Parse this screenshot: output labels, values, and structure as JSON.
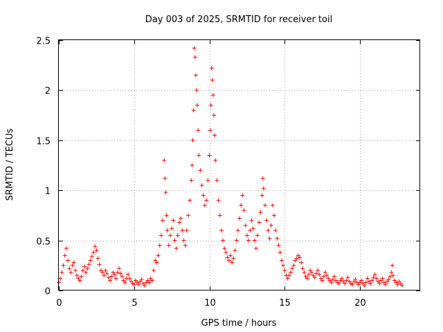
{
  "chart_data": {
    "type": "scatter",
    "title": "Day 003 of 2025, SRMTID for receiver toil",
    "xlabel": "GPS time / hours",
    "ylabel": "SRMTID / TECUs",
    "xlim": [
      0,
      24
    ],
    "ylim": [
      0,
      2.5
    ],
    "grid": true,
    "marker": "+",
    "color": "#ff0000",
    "x_ticks": [
      0,
      5,
      10,
      15,
      20
    ],
    "x_tick_labels": [
      "0",
      "5",
      "10",
      "15",
      "20"
    ],
    "y_ticks": [
      0,
      0.5,
      1,
      1.5,
      2,
      2.5
    ],
    "y_tick_labels": [
      "0",
      "0.5",
      "1",
      "1.5",
      "2",
      "2.5"
    ],
    "series": [
      {
        "name": "SRMTID",
        "points": [
          [
            0.0,
            0.08
          ],
          [
            0.1,
            0.12
          ],
          [
            0.2,
            0.18
          ],
          [
            0.3,
            0.25
          ],
          [
            0.4,
            0.35
          ],
          [
            0.5,
            0.42
          ],
          [
            0.6,
            0.3
          ],
          [
            0.7,
            0.22
          ],
          [
            0.8,
            0.18
          ],
          [
            0.9,
            0.25
          ],
          [
            1.0,
            0.28
          ],
          [
            1.1,
            0.2
          ],
          [
            1.2,
            0.15
          ],
          [
            1.3,
            0.12
          ],
          [
            1.4,
            0.1
          ],
          [
            1.5,
            0.14
          ],
          [
            1.6,
            0.2
          ],
          [
            1.7,
            0.24
          ],
          [
            1.8,
            0.18
          ],
          [
            1.9,
            0.22
          ],
          [
            2.0,
            0.26
          ],
          [
            2.1,
            0.3
          ],
          [
            2.2,
            0.34
          ],
          [
            2.3,
            0.38
          ],
          [
            2.4,
            0.44
          ],
          [
            2.5,
            0.4
          ],
          [
            2.6,
            0.32
          ],
          [
            2.7,
            0.26
          ],
          [
            2.8,
            0.2
          ],
          [
            2.9,
            0.18
          ],
          [
            3.0,
            0.15
          ],
          [
            3.1,
            0.2
          ],
          [
            3.2,
            0.17
          ],
          [
            3.3,
            0.13
          ],
          [
            3.4,
            0.1
          ],
          [
            3.5,
            0.14
          ],
          [
            3.6,
            0.18
          ],
          [
            3.7,
            0.16
          ],
          [
            3.8,
            0.12
          ],
          [
            3.9,
            0.18
          ],
          [
            4.0,
            0.22
          ],
          [
            4.1,
            0.17
          ],
          [
            4.2,
            0.14
          ],
          [
            4.3,
            0.1
          ],
          [
            4.4,
            0.08
          ],
          [
            4.5,
            0.12
          ],
          [
            4.6,
            0.16
          ],
          [
            4.7,
            0.12
          ],
          [
            4.8,
            0.09
          ],
          [
            4.9,
            0.07
          ],
          [
            5.0,
            0.06
          ],
          [
            5.1,
            0.1
          ],
          [
            5.2,
            0.08
          ],
          [
            5.3,
            0.06
          ],
          [
            5.4,
            0.09
          ],
          [
            5.5,
            0.11
          ],
          [
            5.6,
            0.07
          ],
          [
            5.7,
            0.05
          ],
          [
            5.8,
            0.08
          ],
          [
            5.9,
            0.1
          ],
          [
            6.0,
            0.08
          ],
          [
            6.1,
            0.12
          ],
          [
            6.2,
            0.1
          ],
          [
            6.3,
            0.2
          ],
          [
            6.4,
            0.3
          ],
          [
            6.5,
            0.28
          ],
          [
            6.6,
            0.35
          ],
          [
            6.7,
            0.45
          ],
          [
            6.8,
            0.55
          ],
          [
            6.9,
            0.7
          ],
          [
            7.0,
            1.3
          ],
          [
            7.05,
            1.12
          ],
          [
            7.1,
            0.98
          ],
          [
            7.15,
            0.75
          ],
          [
            7.2,
            0.6
          ],
          [
            7.3,
            0.45
          ],
          [
            7.4,
            0.55
          ],
          [
            7.5,
            0.62
          ],
          [
            7.6,
            0.7
          ],
          [
            7.7,
            0.5
          ],
          [
            7.8,
            0.42
          ],
          [
            7.9,
            0.55
          ],
          [
            8.0,
            0.68
          ],
          [
            8.1,
            0.72
          ],
          [
            8.2,
            0.6
          ],
          [
            8.3,
            0.5
          ],
          [
            8.4,
            0.45
          ],
          [
            8.5,
            0.6
          ],
          [
            8.6,
            0.75
          ],
          [
            8.7,
            0.9
          ],
          [
            8.8,
            1.1
          ],
          [
            8.85,
            1.25
          ],
          [
            8.9,
            1.5
          ],
          [
            8.95,
            1.8
          ],
          [
            9.0,
            2.42
          ],
          [
            9.05,
            2.33
          ],
          [
            9.1,
            2.15
          ],
          [
            9.15,
            2.0
          ],
          [
            9.2,
            1.85
          ],
          [
            9.25,
            1.6
          ],
          [
            9.3,
            1.35
          ],
          [
            9.4,
            1.2
          ],
          [
            9.5,
            1.05
          ],
          [
            9.6,
            0.95
          ],
          [
            9.7,
            0.85
          ],
          [
            9.8,
            0.9
          ],
          [
            9.9,
            1.1
          ],
          [
            10.0,
            1.35
          ],
          [
            10.05,
            1.6
          ],
          [
            10.1,
            1.85
          ],
          [
            10.15,
            2.22
          ],
          [
            10.2,
            2.1
          ],
          [
            10.25,
            1.95
          ],
          [
            10.3,
            1.75
          ],
          [
            10.35,
            1.55
          ],
          [
            10.4,
            1.3
          ],
          [
            10.5,
            1.1
          ],
          [
            10.6,
            0.9
          ],
          [
            10.7,
            0.75
          ],
          [
            10.8,
            0.6
          ],
          [
            10.9,
            0.5
          ],
          [
            11.0,
            0.42
          ],
          [
            11.1,
            0.38
          ],
          [
            11.2,
            0.33
          ],
          [
            11.3,
            0.3
          ],
          [
            11.4,
            0.35
          ],
          [
            11.5,
            0.28
          ],
          [
            11.6,
            0.32
          ],
          [
            11.7,
            0.4
          ],
          [
            11.8,
            0.5
          ],
          [
            11.9,
            0.6
          ],
          [
            12.0,
            0.72
          ],
          [
            12.1,
            0.85
          ],
          [
            12.2,
            0.95
          ],
          [
            12.3,
            0.8
          ],
          [
            12.4,
            0.65
          ],
          [
            12.5,
            0.55
          ],
          [
            12.6,
            0.5
          ],
          [
            12.7,
            0.6
          ],
          [
            12.8,
            0.7
          ],
          [
            12.9,
            0.62
          ],
          [
            13.0,
            0.5
          ],
          [
            13.1,
            0.42
          ],
          [
            13.2,
            0.55
          ],
          [
            13.3,
            0.68
          ],
          [
            13.4,
            0.78
          ],
          [
            13.5,
            0.95
          ],
          [
            13.55,
            1.12
          ],
          [
            13.6,
            1.02
          ],
          [
            13.7,
            0.85
          ],
          [
            13.8,
            0.7
          ],
          [
            13.9,
            0.6
          ],
          [
            14.0,
            0.52
          ],
          [
            14.1,
            0.65
          ],
          [
            14.2,
            0.85
          ],
          [
            14.3,
            0.75
          ],
          [
            14.4,
            0.6
          ],
          [
            14.5,
            0.52
          ],
          [
            14.6,
            0.45
          ],
          [
            14.7,
            0.38
          ],
          [
            14.8,
            0.3
          ],
          [
            14.9,
            0.25
          ],
          [
            15.0,
            0.2
          ],
          [
            15.1,
            0.15
          ],
          [
            15.2,
            0.12
          ],
          [
            15.3,
            0.15
          ],
          [
            15.4,
            0.18
          ],
          [
            15.5,
            0.22
          ],
          [
            15.6,
            0.25
          ],
          [
            15.7,
            0.3
          ],
          [
            15.8,
            0.32
          ],
          [
            15.9,
            0.35
          ],
          [
            16.0,
            0.33
          ],
          [
            16.1,
            0.28
          ],
          [
            16.2,
            0.22
          ],
          [
            16.3,
            0.18
          ],
          [
            16.4,
            0.14
          ],
          [
            16.5,
            0.12
          ],
          [
            16.6,
            0.16
          ],
          [
            16.7,
            0.2
          ],
          [
            16.8,
            0.18
          ],
          [
            16.9,
            0.15
          ],
          [
            17.0,
            0.13
          ],
          [
            17.1,
            0.17
          ],
          [
            17.2,
            0.2
          ],
          [
            17.3,
            0.16
          ],
          [
            17.4,
            0.12
          ],
          [
            17.5,
            0.1
          ],
          [
            17.6,
            0.14
          ],
          [
            17.7,
            0.18
          ],
          [
            17.8,
            0.15
          ],
          [
            17.9,
            0.12
          ],
          [
            18.0,
            0.1
          ],
          [
            18.1,
            0.08
          ],
          [
            18.2,
            0.11
          ],
          [
            18.3,
            0.14
          ],
          [
            18.4,
            0.1
          ],
          [
            18.5,
            0.08
          ],
          [
            18.6,
            0.07
          ],
          [
            18.7,
            0.1
          ],
          [
            18.8,
            0.12
          ],
          [
            18.9,
            0.09
          ],
          [
            19.0,
            0.07
          ],
          [
            19.1,
            0.1
          ],
          [
            19.2,
            0.13
          ],
          [
            19.3,
            0.09
          ],
          [
            19.4,
            0.07
          ],
          [
            19.5,
            0.06
          ],
          [
            19.6,
            0.09
          ],
          [
            19.7,
            0.11
          ],
          [
            19.8,
            0.08
          ],
          [
            19.9,
            0.06
          ],
          [
            20.0,
            0.08
          ],
          [
            20.1,
            0.1
          ],
          [
            20.2,
            0.07
          ],
          [
            20.3,
            0.05
          ],
          [
            20.4,
            0.08
          ],
          [
            20.5,
            0.12
          ],
          [
            20.6,
            0.09
          ],
          [
            20.7,
            0.07
          ],
          [
            20.8,
            0.1
          ],
          [
            20.9,
            0.13
          ],
          [
            21.0,
            0.16
          ],
          [
            21.1,
            0.12
          ],
          [
            21.2,
            0.09
          ],
          [
            21.3,
            0.07
          ],
          [
            21.4,
            0.1
          ],
          [
            21.5,
            0.12
          ],
          [
            21.6,
            0.08
          ],
          [
            21.7,
            0.06
          ],
          [
            21.8,
            0.09
          ],
          [
            21.9,
            0.11
          ],
          [
            22.0,
            0.14
          ],
          [
            22.1,
            0.18
          ],
          [
            22.15,
            0.25
          ],
          [
            22.2,
            0.15
          ],
          [
            22.3,
            0.1
          ],
          [
            22.4,
            0.08
          ],
          [
            22.5,
            0.06
          ],
          [
            22.6,
            0.09
          ],
          [
            22.7,
            0.07
          ],
          [
            22.8,
            0.05
          ]
        ]
      }
    ]
  }
}
